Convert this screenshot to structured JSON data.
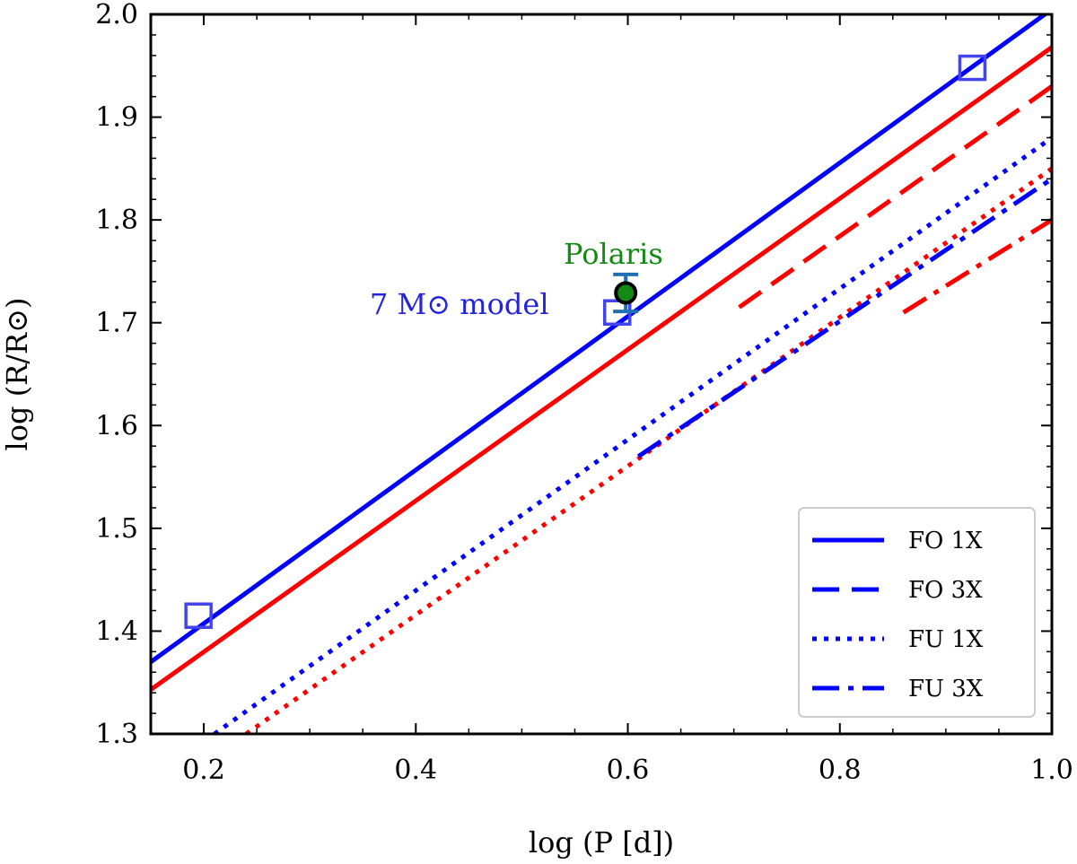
{
  "chart_data": {
    "type": "line",
    "xlabel": "log (P [d])",
    "ylabel": "log (R/R⊙)",
    "xlim": [
      0.15,
      1.0
    ],
    "ylim": [
      1.3,
      2.0
    ],
    "xticks": [
      0.2,
      0.4,
      0.6,
      0.8,
      1.0
    ],
    "xtick_labels": [
      "0.2",
      "0.4",
      "0.6",
      "0.8",
      "1.0"
    ],
    "yticks": [
      1.3,
      1.4,
      1.5,
      1.6,
      1.7,
      1.8,
      1.9,
      2.0
    ],
    "ytick_labels": [
      "1.3",
      "1.4",
      "1.5",
      "1.6",
      "1.7",
      "1.8",
      "1.9",
      "2.0"
    ],
    "grid": false,
    "legend_position": "bottom-right",
    "colors": {
      "blue": "#0000ff",
      "red": "#ff0000",
      "model_square": "#4444ee",
      "polaris_fill": "#138a13",
      "errorbar": "#1f6fb4",
      "annotation_model": "#2323dd",
      "annotation_polaris": "#138a13"
    },
    "legend": [
      {
        "label": "FO 1X",
        "style": "solid"
      },
      {
        "label": "FO 3X",
        "style": "dashed"
      },
      {
        "label": "FU 1X",
        "style": "dotted"
      },
      {
        "label": "FU 3X",
        "style": "dashdot"
      }
    ],
    "series": [
      {
        "group": "FO 1X",
        "color": "blue",
        "style": "solid",
        "x": [
          0.15,
          1.0
        ],
        "y": [
          1.37,
          2.005
        ]
      },
      {
        "group": "FO 1X",
        "color": "red",
        "style": "solid",
        "x": [
          0.15,
          1.0
        ],
        "y": [
          1.343,
          1.968
        ]
      },
      {
        "group": "FO 3X",
        "color": "red",
        "style": "dashed",
        "x": [
          0.705,
          1.0
        ],
        "y": [
          1.715,
          1.93
        ]
      },
      {
        "group": "FU 1X",
        "color": "blue",
        "style": "dotted",
        "x": [
          0.21,
          1.0
        ],
        "y": [
          1.3,
          1.88
        ]
      },
      {
        "group": "FU 1X",
        "color": "red",
        "style": "dotted",
        "x": [
          0.24,
          1.0
        ],
        "y": [
          1.3,
          1.85
        ]
      },
      {
        "group": "FU 3X",
        "color": "blue",
        "style": "dashdot",
        "x": [
          0.61,
          1.0
        ],
        "y": [
          1.57,
          1.84
        ]
      },
      {
        "group": "FU 3X",
        "color": "red",
        "style": "dashdot",
        "x": [
          0.86,
          1.0
        ],
        "y": [
          1.71,
          1.8
        ]
      }
    ],
    "model_points": {
      "x": [
        0.195,
        0.59,
        0.925
      ],
      "y": [
        1.415,
        1.71,
        1.948
      ]
    },
    "polaris": {
      "x": 0.598,
      "y": 1.729,
      "yerr": 0.018
    },
    "annotations": {
      "model_label": "7 M⊙ model",
      "polaris_label": "Polaris"
    }
  }
}
